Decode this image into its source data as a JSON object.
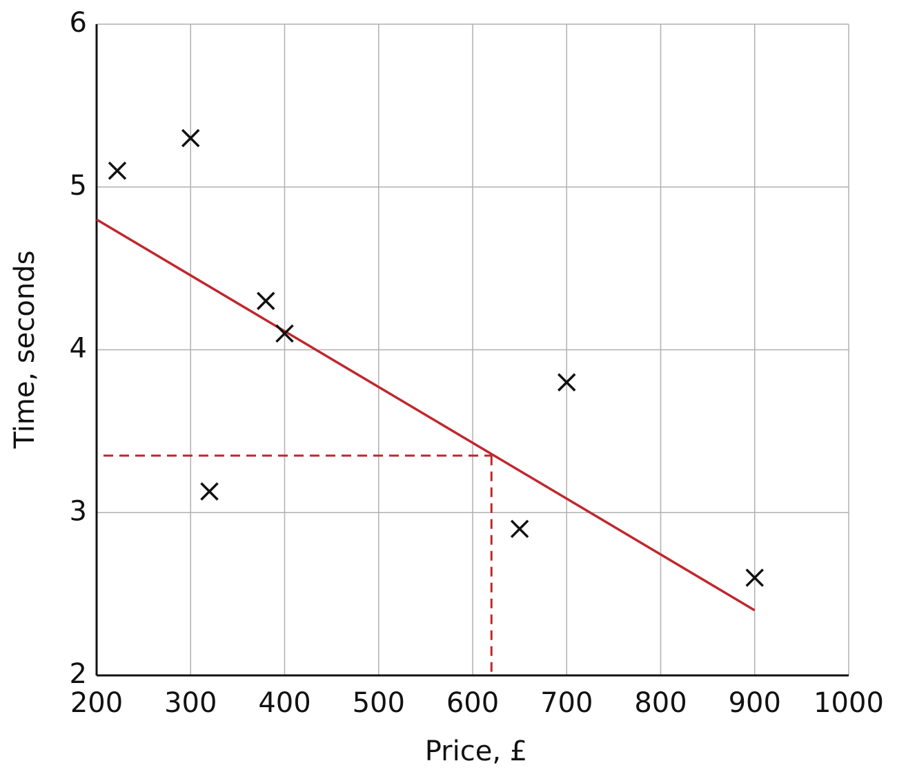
{
  "chart_data": {
    "type": "scatter",
    "x_label": "Price, £",
    "y_label": "Time, seconds",
    "x": [
      222,
      300,
      380,
      400,
      320,
      650,
      700,
      900
    ],
    "values": [
      5.1,
      5.3,
      4.3,
      4.1,
      3.13,
      2.9,
      3.8,
      2.6
    ],
    "color": "#111111",
    "trend": {
      "x": [
        200,
        900
      ],
      "values": [
        4.8,
        2.4
      ],
      "color": "#c0272d"
    },
    "readoff": {
      "x": 620,
      "y": 3.35,
      "color": "#c0272d"
    },
    "xlim": [
      200,
      1000
    ],
    "ylim": [
      2,
      6
    ],
    "xticks": [
      200,
      300,
      400,
      500,
      600,
      700,
      800,
      900,
      1000
    ],
    "yticks": [
      2,
      3,
      4,
      5,
      6
    ],
    "grid": true
  }
}
